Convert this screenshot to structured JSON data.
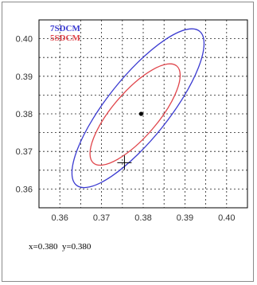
{
  "colors": {
    "outer_ellipse": "#3b3bd1",
    "inner_ellipse": "#e0454b",
    "grid": "#222222",
    "frame": "#000000"
  },
  "chart_data": {
    "type": "scatter",
    "xlim": [
      0.355,
      0.405
    ],
    "ylim": [
      0.355,
      0.405
    ],
    "x_ticks": [
      "0.36",
      "0.37",
      "0.38",
      "0.39",
      "0.40"
    ],
    "y_ticks": [
      "0.40",
      "0.39",
      "0.38",
      "0.37",
      "0.36"
    ],
    "x_tick_values": [
      0.36,
      0.37,
      0.38,
      0.39,
      0.4
    ],
    "y_tick_values": [
      0.4,
      0.39,
      0.38,
      0.37,
      0.36
    ],
    "grid": "dashed",
    "legend_position": "top-left",
    "series": [
      {
        "name": "7SDCM",
        "kind": "ellipse",
        "color": "#3b3bd1",
        "points": [
          [
            0.3935,
            0.402
          ],
          [
            0.392,
            0.379
          ],
          [
            0.364,
            0.361
          ],
          [
            0.3655,
            0.384
          ]
        ]
      },
      {
        "name": "5SDCM",
        "kind": "ellipse",
        "color": "#e0454b",
        "points": [
          [
            0.388,
            0.3928
          ],
          [
            0.3872,
            0.3755
          ],
          [
            0.368,
            0.367
          ],
          [
            0.369,
            0.384
          ]
        ]
      }
    ],
    "center_point": {
      "x": 0.3795,
      "y": 0.38
    },
    "cross_marker": {
      "x": 0.3755,
      "y": 0.367
    }
  },
  "readout": {
    "x_text": "x=0.380",
    "y_text": "y=0.380"
  }
}
